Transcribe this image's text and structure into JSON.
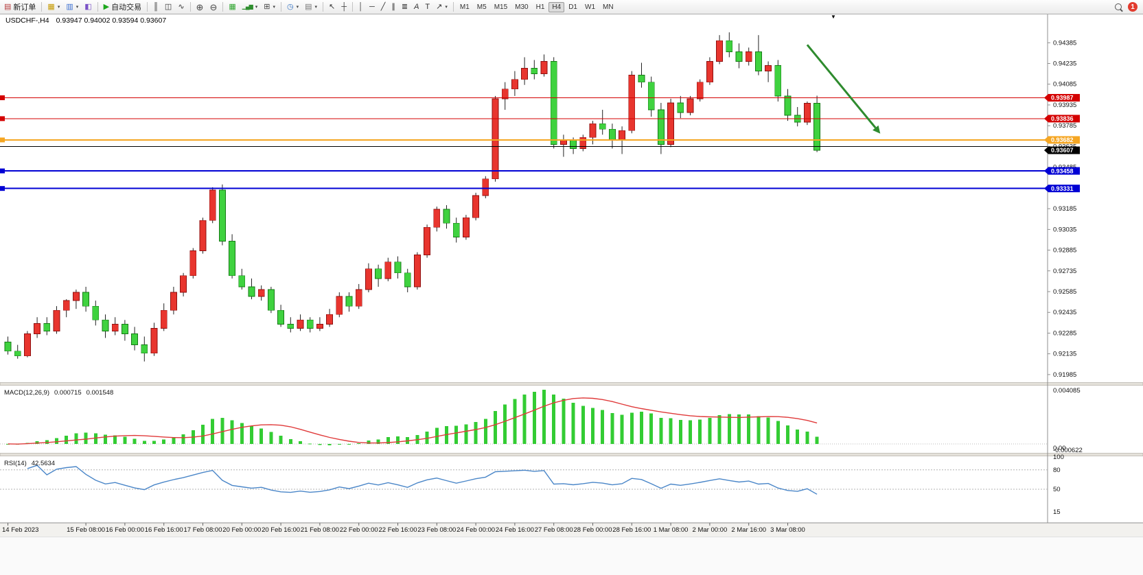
{
  "toolbar": {
    "new_order_label": "新订单",
    "autotrade_label": "自动交易",
    "timeframes": [
      "M1",
      "M5",
      "M15",
      "M30",
      "H1",
      "H4",
      "D1",
      "W1",
      "MN"
    ],
    "active_timeframe": "H4",
    "badge_count": "1"
  },
  "window": {
    "win_caret": "▼"
  },
  "icons": {
    "new_order": "▤",
    "new_chart": "▦",
    "profiles": "▥",
    "data_window": "◧",
    "autotrade_play": "▶",
    "bars_chart": "║",
    "candle_chart": "◫",
    "line_chart": "∿",
    "zoom_in": "⊕",
    "zoom_out": "⊖",
    "tile_windows": "▦",
    "indicators": "▁▄▆",
    "indicator_window": "⊞",
    "clock": "◷",
    "template": "▤",
    "cursor": "↖",
    "crosshair": "┼",
    "vertical_line": "│",
    "horizontal_line": "─",
    "trend_line": "╱",
    "channel": "∥",
    "fibonacci": "≣",
    "text": "A",
    "label": "T",
    "arrow_tool": "↗",
    "caret": "▾"
  },
  "chart": {
    "title": "USDCHF-,H4",
    "ohlc_text": "0.93947 0.94002 0.93594 0.93607"
  },
  "chart_data": {
    "type": "candlestick",
    "symbol": "USDCHF-",
    "timeframe": "H4",
    "current_bar": {
      "open": 0.93947,
      "high": 0.94002,
      "low": 0.93594,
      "close": 0.93607
    },
    "y_axis": {
      "max": 0.94385,
      "min": 0.91985,
      "step": 0.0015
    },
    "colors": {
      "up_fill": "#e8352e",
      "up_stroke": "#8e0f0f",
      "down_fill": "#3fd23f",
      "down_stroke": "#157a15",
      "wick": "#222222"
    },
    "candles": [
      [
        0.9222,
        0.9226,
        0.9213,
        0.92155
      ],
      [
        0.92155,
        0.922,
        0.921,
        0.9212
      ],
      [
        0.9212,
        0.923,
        0.9211,
        0.9228
      ],
      [
        0.9228,
        0.924,
        0.9225,
        0.92355
      ],
      [
        0.92355,
        0.924,
        0.9227,
        0.923
      ],
      [
        0.923,
        0.9248,
        0.9228,
        0.9245
      ],
      [
        0.9245,
        0.9253,
        0.924,
        0.9252
      ],
      [
        0.9252,
        0.926,
        0.9246,
        0.9258
      ],
      [
        0.9258,
        0.9262,
        0.9244,
        0.9248
      ],
      [
        0.9248,
        0.9252,
        0.9234,
        0.9238
      ],
      [
        0.9238,
        0.9242,
        0.9225,
        0.923
      ],
      [
        0.923,
        0.924,
        0.9227,
        0.9235
      ],
      [
        0.9235,
        0.9238,
        0.9223,
        0.9228
      ],
      [
        0.9228,
        0.9233,
        0.9216,
        0.922
      ],
      [
        0.922,
        0.9226,
        0.9208,
        0.9214
      ],
      [
        0.9214,
        0.9236,
        0.9212,
        0.9232
      ],
      [
        0.9232,
        0.925,
        0.923,
        0.9245
      ],
      [
        0.9245,
        0.9262,
        0.9242,
        0.9258
      ],
      [
        0.9258,
        0.9272,
        0.9255,
        0.927
      ],
      [
        0.927,
        0.929,
        0.9268,
        0.9288
      ],
      [
        0.9288,
        0.9312,
        0.9286,
        0.931
      ],
      [
        0.931,
        0.9334,
        0.9308,
        0.9332
      ],
      [
        0.9332,
        0.9336,
        0.9292,
        0.9295
      ],
      [
        0.9295,
        0.93,
        0.9268,
        0.927
      ],
      [
        0.927,
        0.9275,
        0.926,
        0.9262
      ],
      [
        0.9262,
        0.9268,
        0.9253,
        0.9255
      ],
      [
        0.9255,
        0.9263,
        0.9252,
        0.926
      ],
      [
        0.926,
        0.9262,
        0.9243,
        0.9245
      ],
      [
        0.9245,
        0.9249,
        0.9233,
        0.9235
      ],
      [
        0.9235,
        0.924,
        0.9229,
        0.9232
      ],
      [
        0.9232,
        0.9242,
        0.923,
        0.9238
      ],
      [
        0.9238,
        0.924,
        0.9229,
        0.9232
      ],
      [
        0.9232,
        0.924,
        0.923,
        0.9235
      ],
      [
        0.9235,
        0.9246,
        0.9233,
        0.9242
      ],
      [
        0.9242,
        0.9258,
        0.924,
        0.9255
      ],
      [
        0.9255,
        0.9258,
        0.9244,
        0.9248
      ],
      [
        0.9248,
        0.9264,
        0.9246,
        0.926
      ],
      [
        0.926,
        0.9279,
        0.9258,
        0.9275
      ],
      [
        0.9275,
        0.9278,
        0.9262,
        0.9268
      ],
      [
        0.9268,
        0.9283,
        0.9266,
        0.928
      ],
      [
        0.928,
        0.9284,
        0.9268,
        0.9272
      ],
      [
        0.9272,
        0.9275,
        0.9258,
        0.9262
      ],
      [
        0.9262,
        0.9287,
        0.926,
        0.9285
      ],
      [
        0.9285,
        0.9307,
        0.9283,
        0.9305
      ],
      [
        0.9305,
        0.932,
        0.9302,
        0.9318
      ],
      [
        0.9318,
        0.9321,
        0.9304,
        0.9308
      ],
      [
        0.9308,
        0.9312,
        0.9294,
        0.9298
      ],
      [
        0.9298,
        0.9314,
        0.9296,
        0.9312
      ],
      [
        0.9312,
        0.933,
        0.931,
        0.9328
      ],
      [
        0.9328,
        0.9342,
        0.9326,
        0.934
      ],
      [
        0.934,
        0.94,
        0.9338,
        0.9398
      ],
      [
        0.9398,
        0.941,
        0.939,
        0.9405
      ],
      [
        0.9405,
        0.9418,
        0.94,
        0.9412
      ],
      [
        0.9412,
        0.9428,
        0.9408,
        0.942
      ],
      [
        0.942,
        0.9426,
        0.9412,
        0.9416
      ],
      [
        0.9416,
        0.943,
        0.9414,
        0.9425
      ],
      [
        0.9425,
        0.9428,
        0.9362,
        0.9365
      ],
      [
        0.9365,
        0.9372,
        0.9356,
        0.9368
      ],
      [
        0.9368,
        0.937,
        0.9358,
        0.9362
      ],
      [
        0.9362,
        0.9372,
        0.936,
        0.937
      ],
      [
        0.937,
        0.9382,
        0.9365,
        0.938
      ],
      [
        0.938,
        0.939,
        0.9372,
        0.9376
      ],
      [
        0.9376,
        0.938,
        0.9362,
        0.9368
      ],
      [
        0.9368,
        0.9378,
        0.9358,
        0.9375
      ],
      [
        0.9375,
        0.9418,
        0.9373,
        0.9415
      ],
      [
        0.9415,
        0.9424,
        0.9406,
        0.941
      ],
      [
        0.941,
        0.9414,
        0.9385,
        0.939
      ],
      [
        0.939,
        0.9395,
        0.9358,
        0.9365
      ],
      [
        0.9365,
        0.9398,
        0.9363,
        0.9395
      ],
      [
        0.9395,
        0.94,
        0.9384,
        0.9388
      ],
      [
        0.9388,
        0.94,
        0.9386,
        0.9398
      ],
      [
        0.9398,
        0.9412,
        0.9396,
        0.941
      ],
      [
        0.941,
        0.9428,
        0.9408,
        0.9425
      ],
      [
        0.9425,
        0.9444,
        0.9423,
        0.944
      ],
      [
        0.944,
        0.9446,
        0.9428,
        0.9432
      ],
      [
        0.9432,
        0.9438,
        0.942,
        0.9425
      ],
      [
        0.9425,
        0.9435,
        0.9422,
        0.9432
      ],
      [
        0.9432,
        0.9444,
        0.9415,
        0.9418
      ],
      [
        0.9418,
        0.9425,
        0.941,
        0.9422
      ],
      [
        0.9422,
        0.9426,
        0.9396,
        0.94
      ],
      [
        0.94,
        0.9405,
        0.9382,
        0.9386
      ],
      [
        0.9386,
        0.9392,
        0.9378,
        0.9381
      ],
      [
        0.9381,
        0.9396,
        0.9379,
        0.93947
      ],
      [
        0.93947,
        0.94002,
        0.93594,
        0.93607
      ]
    ],
    "time_labels": [
      "14 Feb 2023",
      "15 Feb 08:00",
      "16 Feb 00:00",
      "16 Feb 16:00",
      "17 Feb 08:00",
      "20 Feb 00:00",
      "20 Feb 16:00",
      "21 Feb 08:00",
      "22 Feb 00:00",
      "22 Feb 16:00",
      "23 Feb 08:00",
      "24 Feb 00:00",
      "24 Feb 16:00",
      "27 Feb 08:00",
      "28 Feb 00:00",
      "28 Feb 16:00",
      "1 Mar 08:00",
      "2 Mar 00:00",
      "2 Mar 16:00",
      "3 Mar 08:00"
    ],
    "time_label_indices": [
      0,
      8,
      12,
      16,
      20,
      24,
      28,
      32,
      36,
      40,
      44,
      48,
      52,
      56,
      60,
      64,
      68,
      72,
      76,
      80
    ],
    "h_lines": [
      {
        "price": 0.93987,
        "label": "0.93987",
        "color": "#d40000",
        "width": 1,
        "tag": true
      },
      {
        "price": 0.93836,
        "label": "0.93836",
        "color": "#d40000",
        "width": 1,
        "tag": true
      },
      {
        "price": 0.93682,
        "label": "0.93682",
        "color": "#f5a623",
        "width": 2,
        "tag": true
      },
      {
        "price": 0.93635,
        "label": "",
        "color": "#000000",
        "width": 1,
        "tag": false
      },
      {
        "price": 0.93458,
        "label": "0.93458",
        "color": "#0000d4",
        "width": 2,
        "tag": true
      },
      {
        "price": 0.93331,
        "label": "0.93331",
        "color": "#0000d4",
        "width": 2,
        "tag": true
      }
    ],
    "current_price_tag": {
      "price": 0.93607,
      "label": "0.93607",
      "color": "#000000"
    },
    "trend_arrow": {
      "from_bar": 82,
      "from_price": 0.9437,
      "to_bar": 89,
      "to_price": 0.9377,
      "color": "#2e8b2e"
    },
    "macd": {
      "label": "MACD(12,26,9)",
      "main_value": "0.000715",
      "signal_value": "0.001548",
      "axis_max": "0.004085",
      "axis_zero": "0.00",
      "axis_min": "-0.000622",
      "fast": 12,
      "slow": 26,
      "signal": 9,
      "bar_color": "#33cc33",
      "line_color": "#e03a3a"
    },
    "rsi": {
      "label": "RSI(14)",
      "value": "42.5634",
      "period": 14,
      "levels": [
        100,
        80,
        50,
        15
      ],
      "line_color": "#4a86c8"
    }
  }
}
